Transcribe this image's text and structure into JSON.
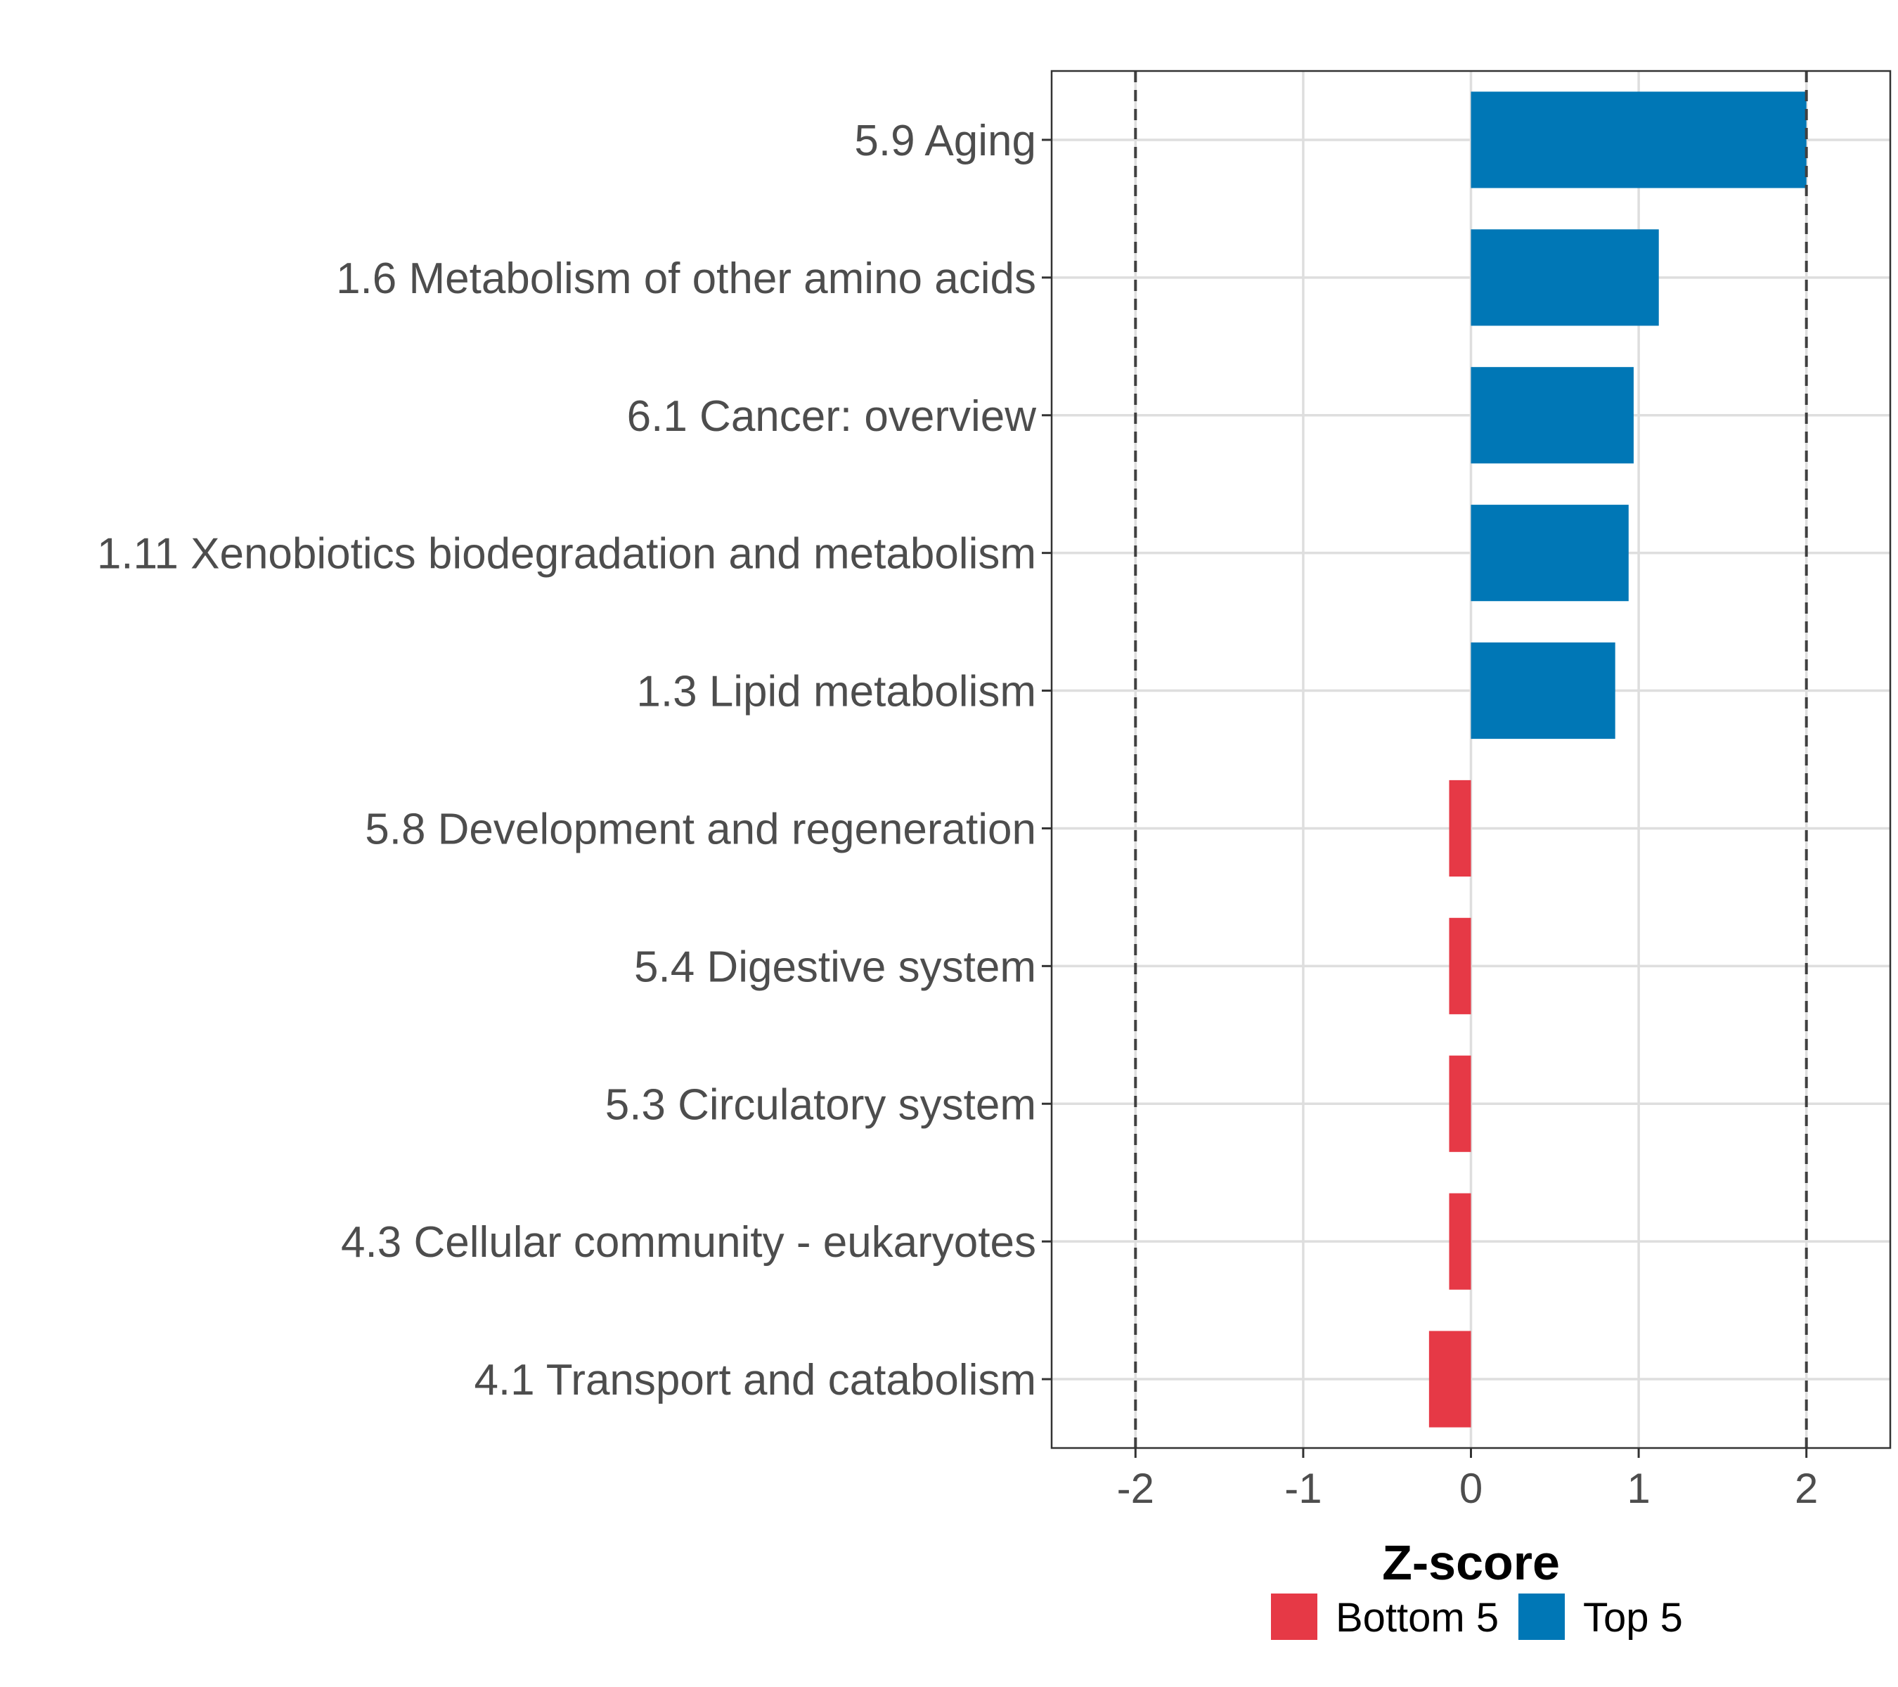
{
  "chart_data": {
    "type": "bar",
    "orientation": "horizontal",
    "xlabel": "Z-score",
    "ylabel": "",
    "xlim": [
      -2.5,
      2.5
    ],
    "xticks": [
      -2,
      -1,
      0,
      1,
      2
    ],
    "xtick_labels": [
      "-2",
      "-1",
      "0",
      "1",
      "2"
    ],
    "reference_lines": [
      -2,
      2
    ],
    "grid": true,
    "legend_position": "bottom",
    "categories": [
      "5.9 Aging",
      "1.6 Metabolism of other amino acids",
      "6.1 Cancer: overview",
      "1.11 Xenobiotics biodegradation and metabolism",
      "1.3 Lipid metabolism",
      "5.8 Development and regeneration",
      "5.4 Digestive system",
      "5.3 Circulatory system",
      "4.3 Cellular community - eukaryotes",
      "4.1 Transport and catabolism"
    ],
    "values": [
      2.0,
      1.12,
      0.97,
      0.94,
      0.86,
      -0.13,
      -0.13,
      -0.13,
      -0.13,
      -0.25
    ],
    "groups": [
      "Top 5",
      "Top 5",
      "Top 5",
      "Top 5",
      "Top 5",
      "Bottom 5",
      "Bottom 5",
      "Bottom 5",
      "Bottom 5",
      "Bottom 5"
    ],
    "series": [
      {
        "name": "Bottom 5",
        "color": "#E63946"
      },
      {
        "name": "Top 5",
        "color": "#0077B6"
      }
    ]
  }
}
